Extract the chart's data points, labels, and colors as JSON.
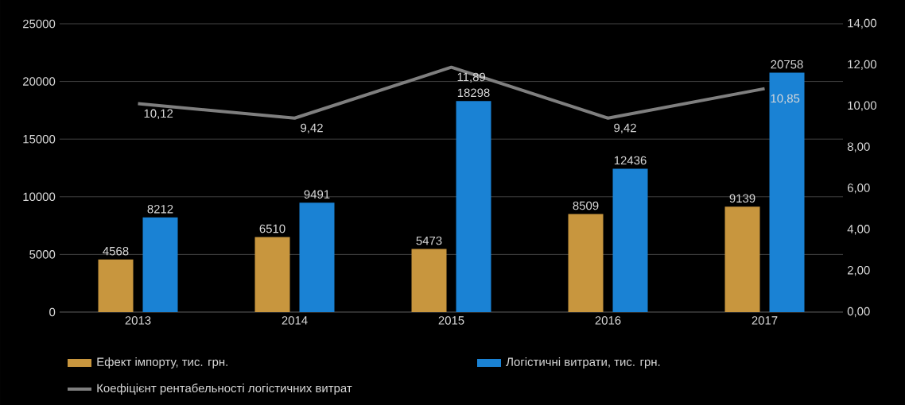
{
  "chart_data": {
    "type": "bar",
    "categories": [
      "2013",
      "2014",
      "2015",
      "2016",
      "2017"
    ],
    "series": [
      {
        "name": "Ефект імпорту, тис. грн.",
        "color": "#c8963e",
        "values": [
          4568,
          6510,
          5473,
          8509,
          9139
        ],
        "value_labels": [
          "4568",
          "6510",
          "5473",
          "8509",
          "9139"
        ]
      },
      {
        "name": "Логістичні витрати, тис. грн.",
        "color": "#1a82d4",
        "values": [
          8212,
          9491,
          18298,
          12436,
          20758
        ],
        "value_labels": [
          "8212",
          "9491",
          "18298",
          "12436",
          "20758"
        ]
      },
      {
        "name": "Коефіцієнт рентабельності логістичних витрат",
        "type": "line",
        "axis": "y2",
        "color": "#7f7f7f",
        "values": [
          10.12,
          9.42,
          11.89,
          9.42,
          10.85
        ],
        "value_labels": [
          "10,12",
          "9,42",
          "11,89",
          "9,42",
          "10,85"
        ]
      }
    ],
    "ylim": [
      0,
      25000
    ],
    "yticks": [
      0,
      5000,
      10000,
      15000,
      20000,
      25000
    ],
    "y2lim": [
      0,
      14
    ],
    "y2ticks": [
      {
        "value": 0,
        "label": "0,00"
      },
      {
        "value": 2,
        "label": "2,00"
      },
      {
        "value": 4,
        "label": "4,00"
      },
      {
        "value": 6,
        "label": "6,00"
      },
      {
        "value": 8,
        "label": "8,00"
      },
      {
        "value": 10,
        "label": "10,00"
      },
      {
        "value": 12,
        "label": "12,00"
      },
      {
        "value": 14,
        "label": "14,00"
      }
    ],
    "grid": "y",
    "legend": "bottom",
    "marker": "none",
    "line_style": "solid"
  }
}
